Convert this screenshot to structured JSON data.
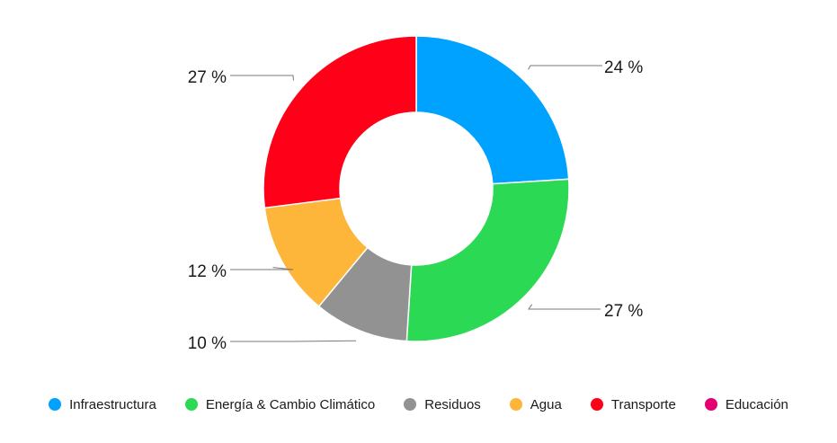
{
  "chart_data": {
    "type": "donut",
    "title": "",
    "series": [
      {
        "name": "Infraestructura",
        "value": 24,
        "label": "24 %",
        "color": "#00A2FF"
      },
      {
        "name": "Energía & Cambio Climático",
        "value": 27,
        "label": "27 %",
        "color": "#2CD955"
      },
      {
        "name": "Residuos",
        "value": 10,
        "label": "10 %",
        "color": "#929292"
      },
      {
        "name": "Agua",
        "value": 12,
        "label": "12 %",
        "color": "#FDB53A"
      },
      {
        "name": "Transporte",
        "value": 27,
        "label": "27 %",
        "color": "#FF0019"
      },
      {
        "name": "Educación",
        "value": 0,
        "label": "",
        "color": "#E40071"
      }
    ],
    "legend_position": "bottom"
  }
}
